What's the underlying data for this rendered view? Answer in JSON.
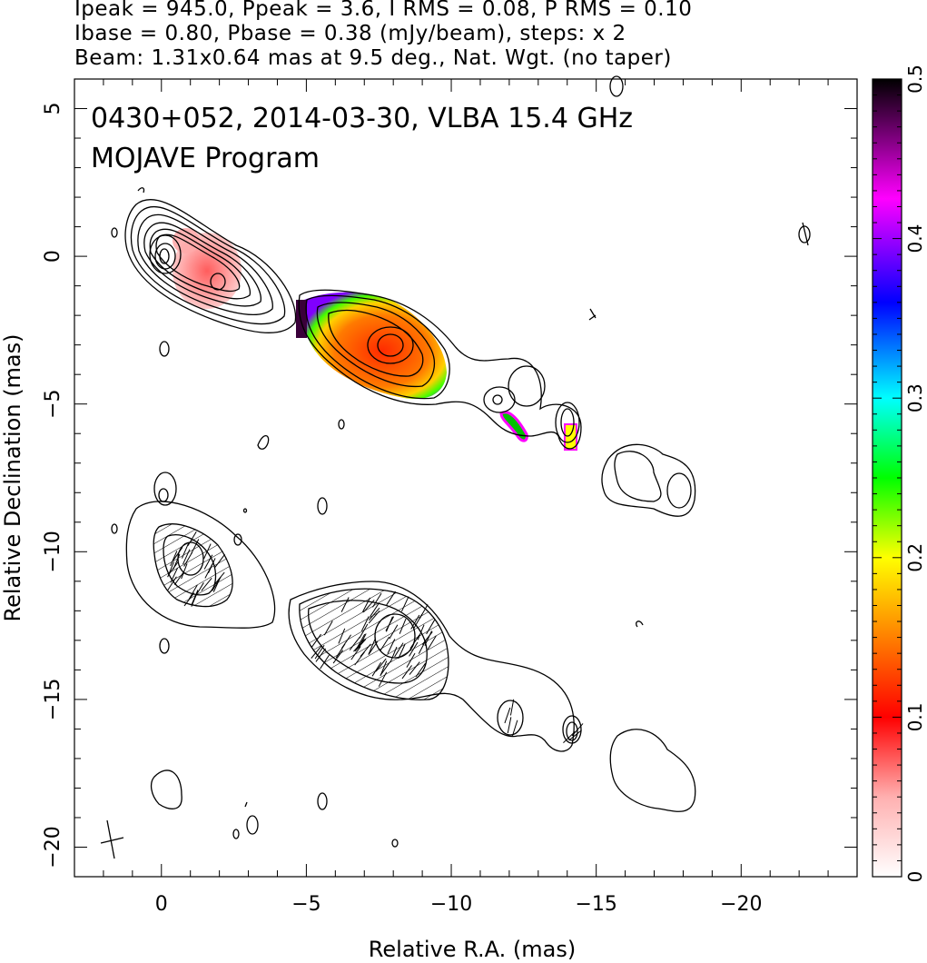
{
  "header": {
    "line1": "Ipeak = 945.0, Ppeak = 3.6, I RMS = 0.08, P RMS = 0.10",
    "line2": "Ibase = 0.80, Pbase = 0.38 (mJy/beam), steps: x 2",
    "line3": "Beam: 1.31x0.64 mas at 9.5 deg., Nat. Wgt. (no taper)"
  },
  "plot": {
    "title_line1": "0430+052, 2014-03-30, VLBA 15.4 GHz",
    "title_line2": "MOJAVE Program"
  },
  "chart_data": {
    "type": "contour",
    "xlabel": "Relative R.A. (mas)",
    "ylabel": "Relative Declination (mas)",
    "xlim": [
      3,
      -24
    ],
    "ylim": [
      -21,
      6
    ],
    "x_ticks": [
      0,
      -5,
      -10,
      -15,
      -20
    ],
    "x_tick_labels": [
      "0",
      "−5",
      "−10",
      "−15",
      "−20"
    ],
    "y_ticks": [
      5,
      0,
      -5,
      -10,
      -15,
      -20
    ],
    "y_tick_labels": [
      "5",
      "0",
      "−5",
      "−10",
      "−15",
      "−20"
    ],
    "colorbar": {
      "range": [
        0,
        0.5
      ],
      "ticks": [
        0,
        0.1,
        0.2,
        0.3,
        0.4,
        0.5
      ],
      "tick_labels": [
        "0",
        "0.1",
        "0.2",
        "0.3",
        "0.4",
        "0.5"
      ],
      "colors": [
        "#ffffff",
        "#ffcccc",
        "#ff0000",
        "#ff8000",
        "#ffff00",
        "#00ff00",
        "#00ffff",
        "#0000ff",
        "#ff00ff",
        "#000000"
      ]
    },
    "upper_panel": {
      "core_ra_dec": [
        0,
        0
      ],
      "knot1_ra_dec": [
        -7.5,
        -3
      ],
      "knot2_ra_dec": [
        -12,
        -5.2
      ],
      "knot3_ra_dec": [
        -14,
        -5.8
      ],
      "knot4_ra_dec": [
        -17,
        -7.5
      ]
    },
    "lower_panel": {
      "core_ra_dec": [
        -1,
        -10
      ],
      "knot1_ra_dec": [
        -7.5,
        -13
      ],
      "knot2_ra_dec": [
        -12,
        -15
      ],
      "knot3_ra_dec": [
        -14,
        -16
      ],
      "knot4_ra_dec": [
        -17,
        -18
      ]
    }
  }
}
